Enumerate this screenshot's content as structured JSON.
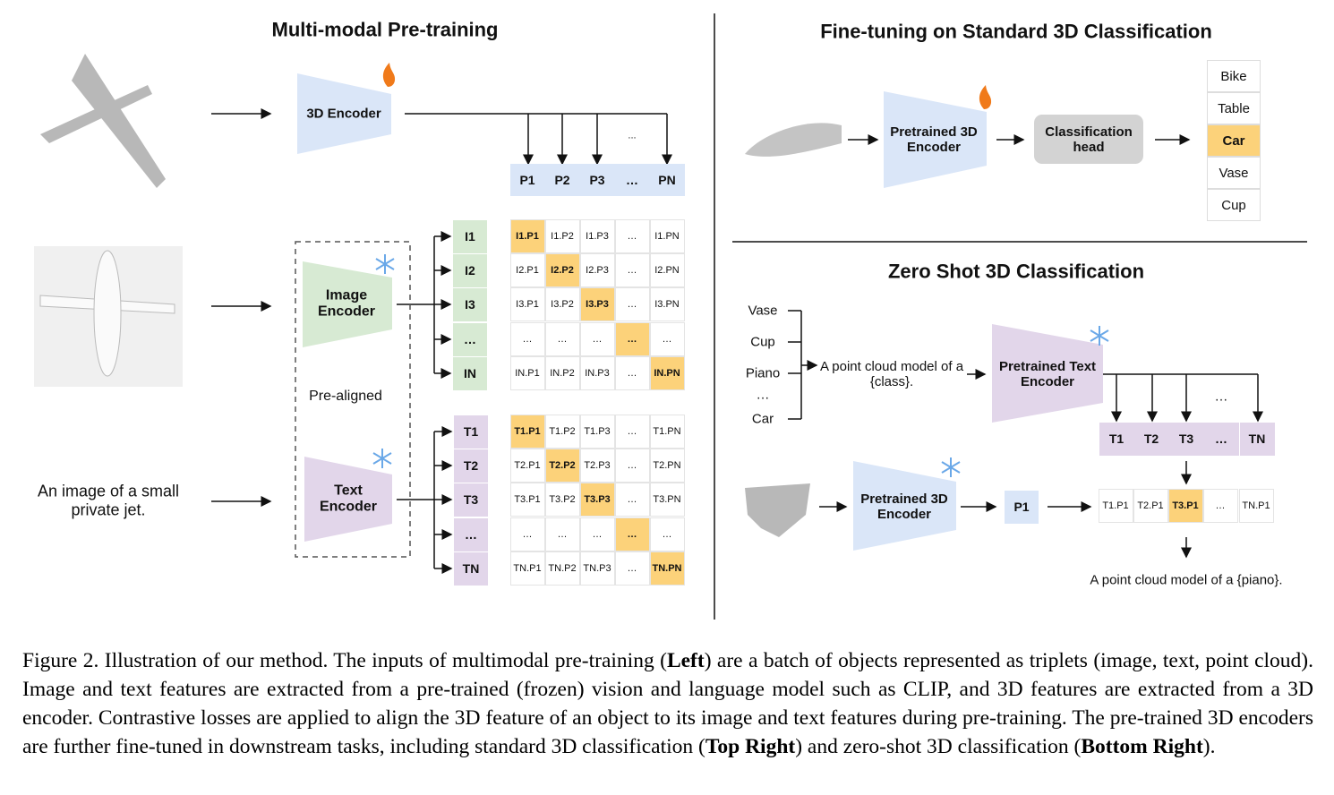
{
  "left": {
    "title": "Multi-modal Pre-training",
    "encoder_3d": "3D Encoder",
    "image_encoder": "Image Encoder",
    "text_encoder": "Text Encoder",
    "pre_aligned": "Pre-aligned",
    "text_input": "An image of a small private jet.",
    "header_ellipsis": "...",
    "points": [
      "P1",
      "P2",
      "P3",
      "…",
      "PN"
    ],
    "image_rows": [
      "I1",
      "I2",
      "I3",
      "…",
      "IN"
    ],
    "image_matrix": [
      [
        "I1.P1",
        "I1.P2",
        "I1.P3",
        "…",
        "I1.PN"
      ],
      [
        "I2.P1",
        "I2.P2",
        "I2.P3",
        "…",
        "I2.PN"
      ],
      [
        "I3.P1",
        "I3.P2",
        "I3.P3",
        "…",
        "I3.PN"
      ],
      [
        "…",
        "…",
        "…",
        "…",
        "…"
      ],
      [
        "IN.P1",
        "IN.P2",
        "IN.P3",
        "…",
        "IN.PN"
      ]
    ],
    "text_rows": [
      "T1",
      "T2",
      "T3",
      "…",
      "TN"
    ],
    "text_matrix": [
      [
        "T1.P1",
        "T1.P2",
        "T1.P3",
        "…",
        "T1.PN"
      ],
      [
        "T2.P1",
        "T2.P2",
        "T2.P3",
        "…",
        "T2.PN"
      ],
      [
        "T3.P1",
        "T3.P2",
        "T3.P3",
        "…",
        "T3.PN"
      ],
      [
        "…",
        "…",
        "…",
        "…",
        "…"
      ],
      [
        "TN.P1",
        "TN.P2",
        "TN.P3",
        "…",
        "TN.PN"
      ]
    ]
  },
  "top_right": {
    "title": "Fine-tuning on Standard 3D Classification",
    "encoder": "Pretrained 3D Encoder",
    "head": "Classification head",
    "classes": [
      "Bike",
      "Table",
      "Car",
      "Vase",
      "Cup"
    ]
  },
  "bottom_right": {
    "title": "Zero Shot 3D Classification",
    "classes": [
      "Vase",
      "Cup",
      "Piano",
      "…",
      "Car"
    ],
    "prompt": "A point cloud model of a {class}.",
    "text_encoder": "Pretrained Text Encoder",
    "features_ellipsis": "…",
    "text_features": [
      "T1",
      "T2",
      "T3",
      "…",
      "TN"
    ],
    "encoder": "Pretrained 3D Encoder",
    "point_feature": "P1",
    "scores": [
      "T1.P1",
      "T2.P1",
      "T3.P1",
      "…",
      "TN.P1"
    ],
    "result": "A point cloud model of a {piano}."
  },
  "caption": [
    {
      "text": "Figure 2. Illustration of our method. The inputs of multimodal pre-training (",
      "bold": false
    },
    {
      "text": "Left",
      "bold": true
    },
    {
      "text": ") are a batch of objects represented as triplets (image, text, point cloud). Image and text features are extracted from a pre-trained (frozen) vision and language model such as CLIP, and 3D features are extracted from a 3D encoder. Contrastive losses are applied to align the 3D feature of an object to its image and text features during pre-training. The pre-trained 3D encoders are further fine-tuned in downstream tasks, including standard 3D classification (",
      "bold": false
    },
    {
      "text": "Top Right",
      "bold": true
    },
    {
      "text": ") and zero-shot 3D classification (",
      "bold": false
    },
    {
      "text": "Bottom Right",
      "bold": true
    },
    {
      "text": ").",
      "bold": false
    }
  ]
}
